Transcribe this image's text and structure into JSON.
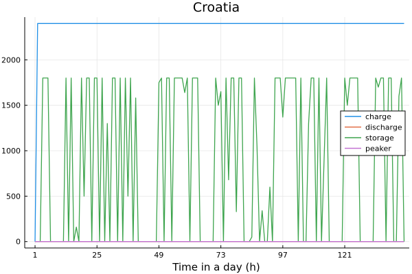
{
  "chart_data": {
    "type": "line",
    "title": "Croatia",
    "xlabel": "Time in a day (h)",
    "ylabel": "",
    "x_ticks": [
      1,
      25,
      49,
      73,
      97,
      121
    ],
    "y_ticks": [
      0,
      500,
      1000,
      1500,
      2000
    ],
    "xlim": [
      -3,
      146
    ],
    "ylim": [
      -70,
      2470
    ],
    "grid": true,
    "legend_position": "right",
    "series": [
      {
        "name": "charge",
        "color": "#1f8fe5",
        "points": [
          [
            1,
            0
          ],
          [
            2,
            2400
          ],
          [
            144,
            2400
          ]
        ]
      },
      {
        "name": "discharge",
        "color": "#e26f46",
        "points": [
          [
            1,
            0
          ],
          [
            144,
            0
          ]
        ]
      },
      {
        "name": "storage",
        "color": "#3da44d",
        "points": [
          [
            1,
            0
          ],
          [
            3,
            0
          ],
          [
            4,
            1800
          ],
          [
            6,
            1800
          ],
          [
            7,
            0
          ],
          [
            12,
            0
          ],
          [
            13,
            1800
          ],
          [
            14,
            0
          ],
          [
            15,
            1800
          ],
          [
            16,
            0
          ],
          [
            17,
            160
          ],
          [
            18,
            0
          ],
          [
            19,
            1800
          ],
          [
            20,
            500
          ],
          [
            21,
            1800
          ],
          [
            22,
            1800
          ],
          [
            23,
            0
          ],
          [
            24,
            1800
          ],
          [
            25,
            1800
          ],
          [
            26,
            0
          ],
          [
            27,
            1800
          ],
          [
            28,
            0
          ],
          [
            29,
            1300
          ],
          [
            30,
            0
          ],
          [
            31,
            1800
          ],
          [
            32,
            1800
          ],
          [
            33,
            0
          ],
          [
            34,
            1800
          ],
          [
            35,
            0
          ],
          [
            36,
            1800
          ],
          [
            37,
            500
          ],
          [
            38,
            1800
          ],
          [
            39,
            0
          ],
          [
            40,
            1580
          ],
          [
            41,
            0
          ],
          [
            48,
            0
          ],
          [
            49,
            1750
          ],
          [
            50,
            1800
          ],
          [
            51,
            0
          ],
          [
            52,
            1800
          ],
          [
            53,
            1800
          ],
          [
            54,
            0
          ],
          [
            55,
            1800
          ],
          [
            56,
            1800
          ],
          [
            58,
            1800
          ],
          [
            59,
            1640
          ],
          [
            60,
            1800
          ],
          [
            61,
            0
          ],
          [
            62,
            1800
          ],
          [
            64,
            1800
          ],
          [
            65,
            0
          ],
          [
            70,
            0
          ],
          [
            71,
            1800
          ],
          [
            72,
            1500
          ],
          [
            73,
            1650
          ],
          [
            74,
            0
          ],
          [
            75,
            1800
          ],
          [
            76,
            680
          ],
          [
            77,
            1800
          ],
          [
            78,
            1800
          ],
          [
            79,
            330
          ],
          [
            80,
            1800
          ],
          [
            81,
            1800
          ],
          [
            82,
            0
          ],
          [
            84,
            0
          ],
          [
            85,
            50
          ],
          [
            86,
            1800
          ],
          [
            87,
            1050
          ],
          [
            88,
            0
          ],
          [
            89,
            340
          ],
          [
            90,
            0
          ],
          [
            91,
            0
          ],
          [
            92,
            600
          ],
          [
            93,
            0
          ],
          [
            94,
            1800
          ],
          [
            96,
            1800
          ],
          [
            97,
            1370
          ],
          [
            98,
            1800
          ],
          [
            102,
            1800
          ],
          [
            103,
            0
          ],
          [
            104,
            1800
          ],
          [
            105,
            0
          ],
          [
            106,
            0
          ],
          [
            107,
            1300
          ],
          [
            108,
            1800
          ],
          [
            109,
            1800
          ],
          [
            110,
            0
          ],
          [
            111,
            1800
          ],
          [
            112,
            0
          ],
          [
            113,
            900
          ],
          [
            114,
            1800
          ],
          [
            115,
            0
          ],
          [
            120,
            0
          ],
          [
            121,
            1800
          ],
          [
            122,
            1500
          ],
          [
            123,
            1800
          ],
          [
            126,
            1800
          ],
          [
            127,
            0
          ],
          [
            132,
            0
          ],
          [
            133,
            1800
          ],
          [
            134,
            1700
          ],
          [
            135,
            1800
          ],
          [
            136,
            1800
          ],
          [
            137,
            0
          ],
          [
            138,
            1800
          ],
          [
            139,
            1800
          ],
          [
            140,
            0
          ],
          [
            141,
            0
          ],
          [
            142,
            1600
          ],
          [
            143,
            1800
          ],
          [
            144,
            0
          ]
        ]
      },
      {
        "name": "peaker",
        "color": "#c271d2",
        "points": [
          [
            1,
            0
          ],
          [
            144,
            0
          ]
        ]
      }
    ]
  }
}
